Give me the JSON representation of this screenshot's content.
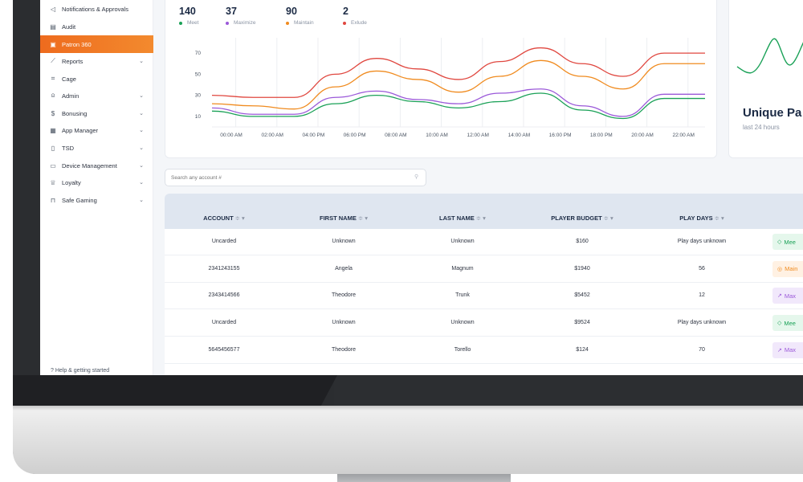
{
  "sidebar": {
    "items": [
      {
        "label": "Notifications & Approvals",
        "icon": "megaphone-icon",
        "glyph": "◁",
        "has_chevron": false
      },
      {
        "label": "Audit",
        "icon": "document-icon",
        "glyph": "▤",
        "has_chevron": false
      },
      {
        "label": "Patron 360",
        "icon": "id-card-icon",
        "glyph": "▣",
        "has_chevron": false,
        "active": true
      },
      {
        "label": "Reports",
        "icon": "line-chart-icon",
        "glyph": "⟋",
        "has_chevron": true
      },
      {
        "label": "Cage",
        "icon": "scan-icon",
        "glyph": "⌗",
        "has_chevron": false
      },
      {
        "label": "Admin",
        "icon": "user-icon",
        "glyph": "⍝",
        "has_chevron": true
      },
      {
        "label": "Bonusing",
        "icon": "dollar-icon",
        "glyph": "$",
        "has_chevron": true
      },
      {
        "label": "App Manager",
        "icon": "grid-icon",
        "glyph": "▦",
        "has_chevron": true
      },
      {
        "label": "TSD",
        "icon": "tablet-icon",
        "glyph": "▯",
        "has_chevron": true
      },
      {
        "label": "Device Management",
        "icon": "monitor-icon",
        "glyph": "▭",
        "has_chevron": true
      },
      {
        "label": "Loyalty",
        "icon": "trophy-icon",
        "glyph": "♕",
        "has_chevron": true
      },
      {
        "label": "Safe Gaming",
        "icon": "lock-icon",
        "glyph": "⊓",
        "has_chevron": true
      }
    ],
    "help": "?  Help & getting started"
  },
  "stats": [
    {
      "value": "140",
      "label": "Meet",
      "color": "#1aa157"
    },
    {
      "value": "37",
      "label": "Maximize",
      "color": "#9b59d9"
    },
    {
      "value": "90",
      "label": "Maintain",
      "color": "#f08b1f"
    },
    {
      "value": "2",
      "label": "Exlude",
      "color": "#e0473f"
    }
  ],
  "chart_data": {
    "type": "line",
    "title": "",
    "xlabel": "",
    "ylabel": "",
    "x": [
      "00:00 AM",
      "02:00 AM",
      "04:00 PM",
      "06:00 PM",
      "08:00 AM",
      "10:00 AM",
      "12:00 AM",
      "14:00 AM",
      "16:00 PM",
      "18:00 PM",
      "20:00 AM",
      "22:00 AM"
    ],
    "yticks": [
      10,
      30,
      50,
      70
    ],
    "ylim": [
      0,
      80
    ],
    "grid": "vertical",
    "series": [
      {
        "color": "#e0473f",
        "values": [
          30,
          28,
          28,
          50,
          65,
          55,
          45,
          62,
          75,
          60,
          48,
          70
        ]
      },
      {
        "color": "#f08b1f",
        "values": [
          22,
          20,
          17,
          38,
          53,
          45,
          33,
          48,
          63,
          48,
          36,
          60
        ]
      },
      {
        "color": "#9b59d9",
        "values": [
          18,
          12,
          12,
          28,
          34,
          26,
          22,
          32,
          36,
          20,
          10,
          31
        ]
      },
      {
        "color": "#1aa157",
        "values": [
          15,
          10,
          10,
          22,
          30,
          24,
          18,
          24,
          32,
          16,
          8,
          27
        ]
      }
    ]
  },
  "unique": {
    "title": "Unique Pa",
    "subtitle": "last 24 hours",
    "spark_color": "#1aa157"
  },
  "search": {
    "placeholder": "Search any account #"
  },
  "table": {
    "headers": [
      "ACCOUNT",
      "FIRST NAME",
      "LAST NAME",
      "PLAYER BUDGET",
      "PLAY DAYS"
    ],
    "sort_glyph": "≑ ▾",
    "rows": [
      {
        "account": "Uncarded",
        "first": "Unknown",
        "last": "Unknown",
        "budget": "$160",
        "days": "Play days unknown",
        "badge": "Mee",
        "badge_type": "meet",
        "badge_icon": "◇"
      },
      {
        "account": "2341243155",
        "first": "Angela",
        "last": "Magnum",
        "budget": "$1940",
        "days": "56",
        "badge": "Main",
        "badge_type": "main",
        "badge_icon": "◎"
      },
      {
        "account": "2343414566",
        "first": "Theodore",
        "last": "Trunk",
        "budget": "$5452",
        "days": "12",
        "badge": "Max",
        "badge_type": "max",
        "badge_icon": "↗"
      },
      {
        "account": "Uncarded",
        "first": "Unknown",
        "last": "Unknown",
        "budget": "$9524",
        "days": "Play days unknown",
        "badge": "Mee",
        "badge_type": "meet",
        "badge_icon": "◇"
      },
      {
        "account": "5645456577",
        "first": "Theodore",
        "last": "Torello",
        "budget": "$124",
        "days": "70",
        "badge": "Max",
        "badge_type": "max",
        "badge_icon": "↗"
      }
    ]
  }
}
